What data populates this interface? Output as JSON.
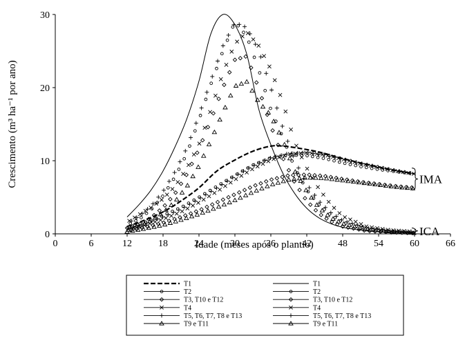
{
  "chart_data": {
    "type": "scatter",
    "xlabel": "Idade (meses após o plantio)",
    "ylabel": "Crescimento (m³ ha⁻¹ por ano)",
    "xlim": [
      0,
      66
    ],
    "ylim": [
      0,
      30
    ],
    "x_ticks": [
      "0",
      "6",
      "12",
      "18",
      "24",
      "30",
      "36",
      "42",
      "48",
      "54",
      "60",
      "66"
    ],
    "y_ticks": [
      "0",
      "10",
      "20",
      "30"
    ],
    "grid": false,
    "legend_position": "bottom",
    "annotations": [
      {
        "text": "IMA",
        "y_range": [
          6,
          9
        ]
      },
      {
        "text": "ICA",
        "y_range": [
          0,
          0.8
        ]
      }
    ],
    "series": [
      {
        "name": "T1",
        "group": "IMA",
        "marker": "dash-line",
        "x": [
          12,
          15,
          18,
          21,
          24,
          27,
          30,
          33,
          36,
          38,
          40,
          44,
          48,
          52,
          56,
          60
        ],
        "y": [
          1,
          1.9,
          3,
          4.5,
          6.3,
          8.6,
          10.1,
          11.3,
          12,
          12,
          11.8,
          11.2,
          10.3,
          9.5,
          8.8,
          8.2
        ]
      },
      {
        "name": "T1",
        "group": "ICA",
        "marker": "solid-line",
        "x": [
          12,
          14,
          16,
          18,
          20,
          22,
          24,
          26,
          28,
          30,
          32,
          34,
          36,
          38,
          40,
          42,
          44,
          46,
          48,
          52,
          56,
          60
        ],
        "y": [
          2.3,
          4,
          6,
          8.6,
          11.9,
          15.8,
          20.9,
          27.4,
          30,
          28.6,
          24.5,
          17,
          12.2,
          8.3,
          5.5,
          3.5,
          2.2,
          1.4,
          0.9,
          0.4,
          0.2,
          0.1
        ]
      },
      {
        "name": "T2",
        "group": "IMA",
        "marker": "circle",
        "x": [
          12,
          15,
          18,
          21,
          24,
          27,
          30,
          33,
          36,
          39,
          42,
          45,
          48,
          51,
          54,
          57,
          60
        ],
        "y": [
          0.8,
          1.6,
          2.5,
          3.6,
          5,
          6.5,
          8,
          9.4,
          10.4,
          10.8,
          10.7,
          10.3,
          9.7,
          9.2,
          8.8,
          8.5,
          8.2
        ]
      },
      {
        "name": "T2",
        "group": "ICA",
        "marker": "circle",
        "x": [
          12,
          14,
          16,
          18,
          20,
          22,
          24,
          26,
          28,
          30,
          32,
          34,
          36,
          38,
          40,
          42,
          44,
          46,
          48,
          52,
          56,
          60
        ],
        "y": [
          1.2,
          2,
          3.3,
          5.2,
          7.8,
          11,
          15.6,
          20.5,
          25,
          29,
          27,
          22.4,
          17,
          13.2,
          9,
          6,
          4,
          2.6,
          1.6,
          0.7,
          0.3,
          0.1
        ]
      },
      {
        "name": "T3, T10 e T12",
        "group": "IMA",
        "marker": "diamond",
        "x": [
          12,
          15,
          18,
          21,
          24,
          27,
          30,
          33,
          36,
          39,
          42,
          45,
          48,
          51,
          54,
          57,
          60
        ],
        "y": [
          0.4,
          0.9,
          1.5,
          2.3,
          3.2,
          4.3,
          5.4,
          6.5,
          7.4,
          8,
          8.1,
          7.9,
          7.5,
          7.1,
          6.8,
          6.5,
          6.3
        ]
      },
      {
        "name": "T3, T10 e T12",
        "group": "ICA",
        "marker": "diamond",
        "x": [
          12,
          14,
          16,
          18,
          20,
          22,
          24,
          26,
          28,
          30,
          32,
          34,
          36,
          38,
          40,
          42,
          44,
          46,
          48,
          52,
          56,
          60
        ],
        "y": [
          0.8,
          1.3,
          2.2,
          3.6,
          5.5,
          8.2,
          11.6,
          15.6,
          20,
          23.8,
          24.3,
          19.8,
          14.8,
          10.4,
          7,
          4.5,
          2.8,
          1.7,
          1,
          0.4,
          0.2,
          0.1
        ]
      },
      {
        "name": "T4",
        "group": "IMA",
        "marker": "cross",
        "x": [
          12,
          15,
          18,
          21,
          24,
          27,
          30,
          33,
          36,
          39,
          42,
          45,
          48,
          51,
          54,
          57,
          60
        ],
        "y": [
          0.6,
          1.2,
          2,
          3,
          4.3,
          5.8,
          7.4,
          8.9,
          10.1,
          10.9,
          11.1,
          10.8,
          10.2,
          9.6,
          9.1,
          8.6,
          8.2
        ]
      },
      {
        "name": "T4",
        "group": "ICA",
        "marker": "cross",
        "x": [
          12,
          14,
          16,
          18,
          20,
          22,
          24,
          26,
          28,
          30,
          32,
          34,
          36,
          38,
          40,
          42,
          44,
          46,
          48,
          52,
          56,
          60
        ],
        "y": [
          1.6,
          2.6,
          3.6,
          4.8,
          6.5,
          9,
          12.2,
          17,
          22,
          26,
          27.6,
          25.7,
          22.5,
          18,
          12.5,
          9,
          6.2,
          4,
          2.4,
          1,
          0.5,
          0.3
        ]
      },
      {
        "name": "T5, T6, T7, T8 e T13",
        "group": "IMA",
        "marker": "plus",
        "x": [
          12,
          15,
          18,
          21,
          24,
          27,
          30,
          33,
          36,
          39,
          42,
          45,
          48,
          51,
          54,
          57,
          60
        ],
        "y": [
          0.7,
          1.4,
          2.3,
          3.4,
          4.8,
          6.3,
          7.9,
          9.3,
          10.4,
          11,
          11.1,
          10.8,
          10.2,
          9.6,
          9.1,
          8.6,
          8.2
        ]
      },
      {
        "name": "T5, T6, T7, T8 e T13",
        "group": "ICA",
        "marker": "plus",
        "x": [
          12,
          14,
          16,
          18,
          20,
          22,
          24,
          26,
          28,
          30,
          32,
          34,
          36,
          38,
          40,
          42,
          44,
          46,
          48,
          52,
          56,
          60
        ],
        "y": [
          1.4,
          2.4,
          3.8,
          5.8,
          8.5,
          11.8,
          16.2,
          21,
          25.7,
          28.9,
          28.2,
          25,
          20,
          14.5,
          10,
          6.8,
          4.5,
          2.9,
          1.8,
          0.8,
          0.4,
          0.2
        ]
      },
      {
        "name": "T9 e T11",
        "group": "IMA",
        "marker": "triangle",
        "x": [
          12,
          15,
          18,
          21,
          24,
          27,
          30,
          33,
          36,
          39,
          42,
          45,
          48,
          51,
          54,
          57,
          60
        ],
        "y": [
          0.3,
          0.7,
          1.2,
          1.9,
          2.7,
          3.6,
          4.6,
          5.7,
          6.7,
          7.4,
          7.7,
          7.6,
          7.3,
          7,
          6.7,
          6.4,
          6.2
        ]
      },
      {
        "name": "T9 e T11",
        "group": "ICA",
        "marker": "triangle",
        "x": [
          12,
          14,
          16,
          18,
          20,
          22,
          24,
          26,
          28,
          30,
          32,
          34,
          36,
          38,
          40,
          42,
          44,
          46,
          48,
          52,
          56,
          60
        ],
        "y": [
          0.5,
          1,
          1.8,
          2.9,
          4.4,
          6.5,
          9.3,
          12.8,
          16.6,
          20.2,
          20.8,
          18,
          16.2,
          12.8,
          8.6,
          5.8,
          3.6,
          2.2,
          1.4,
          0.6,
          0.3,
          0.1
        ]
      }
    ]
  }
}
